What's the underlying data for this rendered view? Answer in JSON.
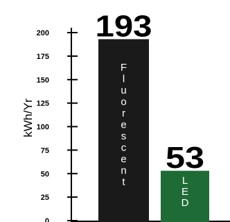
{
  "chart_data": {
    "type": "bar",
    "categories": [
      "Fluorescent",
      "LED"
    ],
    "values": [
      193,
      53
    ],
    "value_labels": [
      "193",
      "53"
    ],
    "ylabel": "kWh/Yr",
    "ylim": [
      0,
      200
    ],
    "yticks": [
      "0",
      "25",
      "50",
      "75",
      "100",
      "125",
      "150",
      "175",
      "200"
    ],
    "bar_colors": [
      "#1a1a1a",
      "#1e6b35"
    ],
    "bar_text_colors": [
      "#ffffff",
      "#ffffff"
    ],
    "grid": false,
    "legend": "none"
  }
}
